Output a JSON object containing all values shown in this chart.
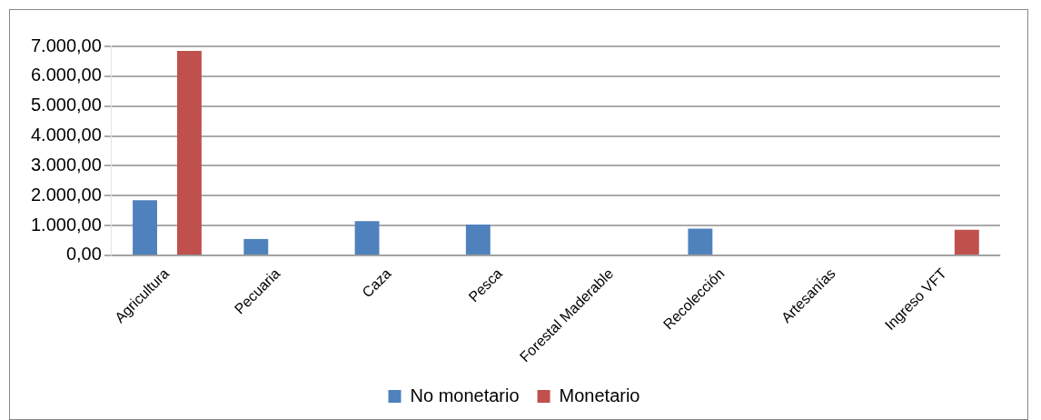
{
  "chart_data": {
    "type": "bar",
    "categories": [
      "Agricultura",
      "Pecuaria",
      "Caza",
      "Pesca",
      "Forestal Maderable",
      "Recolección",
      "Artesanías",
      "Ingreso VFT"
    ],
    "series": [
      {
        "name": "No monetario",
        "color": "#4f81bd",
        "values": [
          1850,
          550,
          1150,
          1030,
          30,
          900,
          30,
          0
        ]
      },
      {
        "name": "Monetario",
        "color": "#c0504d",
        "values": [
          6850,
          0,
          0,
          0,
          0,
          0,
          0,
          860
        ]
      }
    ],
    "ylim": [
      0,
      7000
    ],
    "yticks": [
      {
        "value": 0,
        "label": "0,00"
      },
      {
        "value": 1000,
        "label": "1.000,00"
      },
      {
        "value": 2000,
        "label": "2.000,00"
      },
      {
        "value": 3000,
        "label": "3.000,00"
      },
      {
        "value": 4000,
        "label": "4.000,00"
      },
      {
        "value": 5000,
        "label": "5.000,00"
      },
      {
        "value": 6000,
        "label": "6.000,00"
      },
      {
        "value": 7000,
        "label": "7.000,00"
      }
    ],
    "grid": "y",
    "legend": "bottom"
  }
}
